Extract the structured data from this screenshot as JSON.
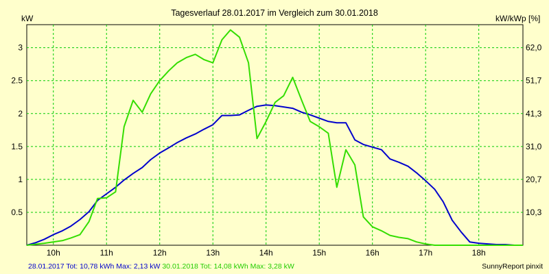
{
  "chart_data": {
    "type": "line",
    "title": "Tagesverlauf 28.01.2017 im Vergleich zum 30.01.2018",
    "ylabel_left": "kW",
    "ylabel_right": "kW/kWp [%]",
    "x_ticks": [
      "10h",
      "11h",
      "12h",
      "13h",
      "14h",
      "15h",
      "16h",
      "17h",
      "18h"
    ],
    "y_ticks_left": [
      "0.5",
      "1",
      "1.5",
      "2",
      "2.5",
      "3"
    ],
    "y_ticks_right": [
      "10,3",
      "20,7",
      "31,0",
      "41,3",
      "51,7",
      "62,0"
    ],
    "ylim": [
      0,
      3.35
    ],
    "xlim": [
      9.5,
      18.83
    ],
    "grid": true,
    "grid_color": "#00cc00",
    "series": [
      {
        "name": "28.01.2017",
        "color": "#0000cc",
        "x": [
          9.5,
          9.67,
          9.83,
          10.0,
          10.17,
          10.33,
          10.5,
          10.67,
          10.83,
          11.0,
          11.17,
          11.33,
          11.5,
          11.67,
          11.83,
          12.0,
          12.17,
          12.33,
          12.5,
          12.67,
          12.83,
          13.0,
          13.17,
          13.33,
          13.5,
          13.67,
          13.83,
          14.0,
          14.17,
          14.33,
          14.5,
          14.67,
          14.83,
          15.0,
          15.17,
          15.33,
          15.5,
          15.67,
          15.83,
          16.0,
          16.17,
          16.33,
          16.5,
          16.67,
          16.83,
          17.0,
          17.17,
          17.33,
          17.5,
          17.67,
          17.83,
          18.0,
          18.17,
          18.33,
          18.5,
          18.67,
          18.83
        ],
        "y": [
          0.0,
          0.04,
          0.09,
          0.16,
          0.22,
          0.29,
          0.39,
          0.51,
          0.68,
          0.78,
          0.88,
          0.99,
          1.09,
          1.18,
          1.3,
          1.4,
          1.48,
          1.56,
          1.63,
          1.69,
          1.76,
          1.83,
          1.97,
          1.97,
          1.98,
          2.05,
          2.11,
          2.13,
          2.12,
          2.1,
          2.08,
          2.02,
          1.98,
          1.93,
          1.88,
          1.86,
          1.86,
          1.6,
          1.53,
          1.49,
          1.45,
          1.31,
          1.26,
          1.2,
          1.1,
          0.98,
          0.85,
          0.66,
          0.38,
          0.2,
          0.05,
          0.03,
          0.02,
          0.01,
          0.01,
          0.0,
          0.0
        ]
      },
      {
        "name": "30.01.2018",
        "color": "#33dd00",
        "x": [
          9.5,
          9.83,
          10.17,
          10.33,
          10.5,
          10.67,
          10.83,
          11.0,
          11.17,
          11.33,
          11.5,
          11.67,
          11.83,
          12.0,
          12.17,
          12.33,
          12.5,
          12.67,
          12.83,
          13.0,
          13.17,
          13.33,
          13.5,
          13.67,
          13.83,
          14.0,
          14.17,
          14.33,
          14.5,
          14.67,
          14.83,
          15.0,
          15.17,
          15.33,
          15.5,
          15.67,
          15.83,
          16.0,
          16.17,
          16.33,
          16.5,
          16.67,
          16.83,
          17.0,
          17.17,
          17.33,
          17.5,
          17.67,
          17.83,
          18.0,
          18.17,
          18.33,
          18.5,
          18.67,
          18.83
        ],
        "y": [
          0.0,
          0.03,
          0.07,
          0.11,
          0.16,
          0.36,
          0.71,
          0.72,
          0.81,
          1.8,
          2.2,
          2.02,
          2.3,
          2.5,
          2.65,
          2.77,
          2.85,
          2.9,
          2.82,
          2.77,
          3.12,
          3.27,
          3.16,
          2.77,
          1.62,
          1.88,
          2.17,
          2.27,
          2.55,
          2.2,
          1.88,
          1.8,
          1.7,
          0.88,
          1.45,
          1.22,
          0.43,
          0.28,
          0.22,
          0.15,
          0.12,
          0.1,
          0.05,
          0.02,
          0.0,
          0.0,
          0.0,
          0.0,
          0.0,
          0.0,
          0.0,
          0.0,
          0.0,
          0.0,
          0.0
        ]
      }
    ]
  },
  "footer": {
    "series1": "28.01.2017 Tot: 10,78 kWh Max: 2,13 kW",
    "series2": "30.01.2018 Tot: 14,08 kWh Max: 3,28 kW",
    "brand": "SunnyReport pinxit"
  }
}
